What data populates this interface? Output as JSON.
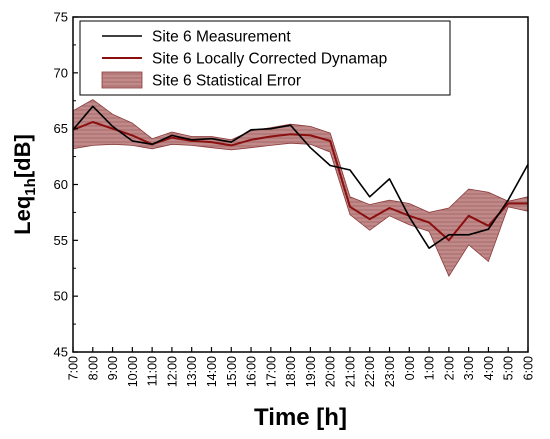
{
  "chart_data": {
    "type": "line",
    "xlabel": "Time [h]",
    "ylabel_main": "Leq",
    "ylabel_sub": "1h",
    "ylabel_unit": "[dB]",
    "ylim": [
      45,
      75
    ],
    "yticks": [
      45,
      50,
      55,
      60,
      65,
      70,
      75
    ],
    "categories": [
      "7:00",
      "8:00",
      "9:00",
      "10:00",
      "11:00",
      "12:00",
      "13:00",
      "14:00",
      "15:00",
      "16:00",
      "17:00",
      "18:00",
      "19:00",
      "20:00",
      "21:00",
      "22:00",
      "23:00",
      "0:00",
      "1:00",
      "2:00",
      "3:00",
      "4:00",
      "5:00",
      "6:00"
    ],
    "series": [
      {
        "name": "Site 6 Measurement",
        "color": "#000000",
        "values": [
          64.9,
          67.0,
          65.2,
          63.9,
          63.6,
          64.4,
          64.0,
          64.1,
          63.8,
          64.9,
          65.0,
          65.3,
          63.3,
          61.7,
          61.3,
          58.9,
          60.5,
          57.1,
          54.3,
          55.5,
          55.5,
          56.0,
          58.6,
          61.8
        ]
      },
      {
        "name": "Site 6 Locally Corrected Dynamap",
        "color": "#8b0f0f",
        "values": [
          64.9,
          65.6,
          65.0,
          64.4,
          63.6,
          64.2,
          63.9,
          63.8,
          63.5,
          64.0,
          64.3,
          64.5,
          64.4,
          63.9,
          58.0,
          56.9,
          57.9,
          57.2,
          56.6,
          55.0,
          57.2,
          56.3,
          58.3,
          58.3
        ]
      },
      {
        "name": "Site 6 Statistical Error",
        "type": "band",
        "color": "#c08a8a",
        "stroke": "#8b3a3a",
        "upper": [
          66.6,
          67.6,
          66.3,
          65.5,
          64.1,
          64.7,
          64.3,
          64.3,
          64.0,
          64.8,
          65.1,
          65.4,
          65.2,
          64.6,
          58.9,
          58.2,
          58.6,
          58.3,
          57.5,
          57.9,
          59.6,
          59.3,
          58.5,
          58.9
        ],
        "lower": [
          63.2,
          63.5,
          63.6,
          63.5,
          63.2,
          63.6,
          63.5,
          63.3,
          63.1,
          63.3,
          63.5,
          63.7,
          63.6,
          62.9,
          57.3,
          55.9,
          57.2,
          56.4,
          55.8,
          51.8,
          54.6,
          53.1,
          58.0,
          57.6
        ]
      }
    ],
    "legend_position": "top-right",
    "grid": false
  }
}
